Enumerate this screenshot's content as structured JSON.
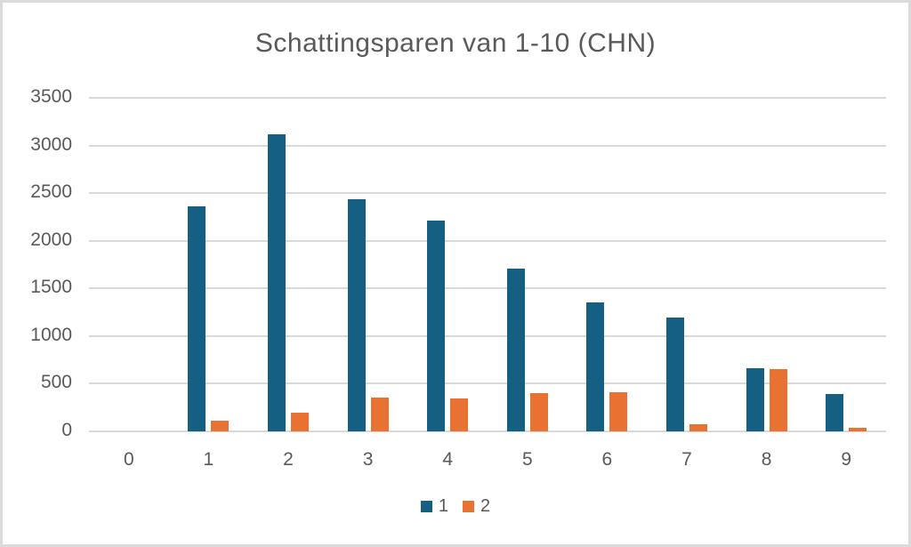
{
  "chart_data": {
    "type": "bar",
    "title": "Schattingsparen van 1-10 (CHN)",
    "xlabel": "",
    "ylabel": "",
    "categories": [
      "0",
      "1",
      "2",
      "3",
      "4",
      "5",
      "6",
      "7",
      "8",
      "9"
    ],
    "series": [
      {
        "name": "1",
        "color": "#156082",
        "values": [
          0,
          2360,
          3120,
          2440,
          2210,
          1710,
          1355,
          1195,
          660,
          395
        ]
      },
      {
        "name": "2",
        "color": "#E97132",
        "values": [
          0,
          110,
          195,
          355,
          345,
          400,
          415,
          75,
          655,
          35
        ]
      }
    ],
    "ylim": [
      0,
      3500
    ],
    "yticks": [
      0,
      500,
      1000,
      1500,
      2000,
      2500,
      3000,
      3500
    ],
    "grid": "horizontal",
    "legend_position": "bottom"
  },
  "colors": {
    "text": "#595959",
    "gridline": "#D9D9D9",
    "border": "#DBDBDB",
    "background": "#FFFFFF"
  }
}
